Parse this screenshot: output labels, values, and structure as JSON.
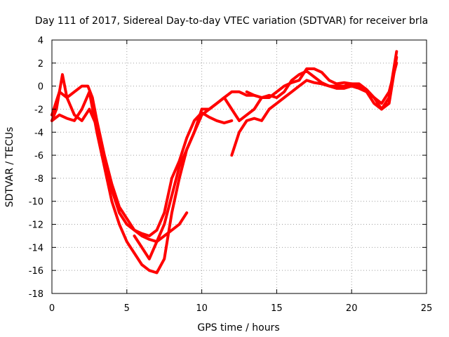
{
  "chart_data": {
    "type": "line",
    "title": "Day 111 of 2017, Sidereal Day-to-day VTEC variation (SDTVAR) for receiver brla",
    "xlabel": "GPS time / hours",
    "ylabel": "SDTVAR / TECUs",
    "xlim": [
      0,
      25
    ],
    "ylim": [
      -18,
      4
    ],
    "xticks": [
      0,
      5,
      10,
      15,
      20,
      25
    ],
    "yticks": [
      -18,
      -16,
      -14,
      -12,
      -10,
      -8,
      -6,
      -4,
      -2,
      0,
      2,
      4
    ],
    "grid": true,
    "color": "#ff0000",
    "series": [
      {
        "x": [
          0,
          0.3,
          0.7,
          1.0,
          1.5,
          2.0,
          2.4,
          2.7,
          3.0,
          3.5,
          4.0,
          4.5,
          5.0,
          5.5,
          6.0,
          6.5,
          7.0,
          7.5,
          8.0,
          8.5,
          9.0,
          9.5,
          10.0,
          10.5,
          11.0,
          11.5,
          12.0
        ],
        "y": [
          -3.0,
          -2.0,
          1.0,
          -1.0,
          -0.5,
          0.0,
          0.0,
          -1.0,
          -3.0,
          -6.0,
          -8.5,
          -10.5,
          -11.5,
          -12.5,
          -12.8,
          -13.0,
          -12.5,
          -11.0,
          -8.0,
          -6.5,
          -4.5,
          -3.0,
          -2.3,
          -2.7,
          -3.0,
          -3.2,
          -3.0
        ]
      },
      {
        "x": [
          0,
          0.5,
          1.0,
          1.5,
          2.0,
          2.5,
          3.0,
          3.5,
          4.0,
          4.5,
          5.0,
          5.5,
          6.0,
          6.5,
          7.0,
          7.5,
          8.0,
          8.5,
          9.0,
          9.5,
          10.0,
          10.5,
          11.0,
          11.5,
          12.0,
          12.5,
          13.0,
          13.5,
          14.0
        ],
        "y": [
          -2.5,
          -0.5,
          -1.0,
          -2.5,
          -3.0,
          -2.0,
          -3.5,
          -6.5,
          -9.0,
          -11.0,
          -12.0,
          -12.5,
          -13.0,
          -13.3,
          -13.5,
          -12.0,
          -9.5,
          -7.0,
          -5.5,
          -4.0,
          -2.0,
          -2.0,
          -1.5,
          -1.0,
          -0.5,
          -0.5,
          -0.8,
          -0.8,
          -1.0
        ]
      },
      {
        "x": [
          0,
          0.5,
          1.0,
          1.5,
          2.0,
          2.5,
          3.0,
          3.5,
          4.0,
          4.5,
          5.0,
          5.5,
          6.0,
          6.5,
          7.0,
          7.5,
          8.0,
          8.5,
          9.0,
          9.5,
          10.0,
          10.5,
          11.0,
          11.5,
          12.0,
          12.5,
          13.0,
          13.5,
          14.0,
          14.5,
          15.0,
          15.5,
          16.0,
          16.5,
          17.0,
          17.5,
          18.0,
          18.5,
          19.0,
          19.5,
          20.0,
          20.5,
          21.0,
          21.5,
          22.0,
          22.5,
          23.0
        ],
        "y": [
          -3.0,
          -2.5,
          -2.8,
          -3.0,
          -2.0,
          -0.5,
          -4.0,
          -7.0,
          -10.0,
          -12.0,
          -13.5,
          -14.5,
          -15.5,
          -16.0,
          -16.2,
          -15.0,
          -11.0,
          -8.0,
          -5.5,
          -4.0,
          -2.5,
          -2.0,
          -1.5,
          -1.0,
          -2.0,
          -3.0,
          -2.5,
          -2.0,
          -1.0,
          -0.8,
          -1.0,
          -0.5,
          0.5,
          1.0,
          1.3,
          0.8,
          0.3,
          0.0,
          -0.2,
          -0.2,
          0.0,
          -0.2,
          -0.5,
          -1.0,
          -2.0,
          -1.0,
          3.0
        ]
      },
      {
        "x": [
          5.5,
          6.0,
          6.5,
          7.0,
          7.5,
          8.0,
          8.5,
          9.0
        ],
        "y": [
          -13.0,
          -14.0,
          -15.0,
          -13.5,
          -13.0,
          -12.5,
          -12.0,
          -11.0
        ]
      },
      {
        "x": [
          12.0,
          12.5,
          13.0,
          13.5,
          14.0,
          14.5,
          15.0,
          15.5,
          16.0,
          16.5,
          17.0,
          17.5,
          18.0,
          18.5,
          19.0,
          19.5,
          20.0,
          20.5,
          21.0,
          21.5,
          22.0,
          22.5,
          23.0
        ],
        "y": [
          -6.0,
          -4.0,
          -3.0,
          -2.8,
          -3.0,
          -2.0,
          -1.5,
          -1.0,
          -0.5,
          0.0,
          0.5,
          0.3,
          0.2,
          0.0,
          0.0,
          0.0,
          0.2,
          0.0,
          -0.5,
          -1.5,
          -2.0,
          -1.5,
          2.5
        ]
      },
      {
        "x": [
          13.0,
          13.5,
          14.0,
          14.5,
          15.0,
          15.5,
          16.0,
          16.5,
          17.0,
          17.5,
          18.0,
          18.5,
          19.0,
          19.5,
          20.0,
          20.5,
          21.0,
          21.5,
          22.0,
          22.5,
          23.0
        ],
        "y": [
          -0.5,
          -0.8,
          -1.0,
          -1.0,
          -0.5,
          0.0,
          0.3,
          0.5,
          1.5,
          1.5,
          1.2,
          0.5,
          0.2,
          0.3,
          0.2,
          0.2,
          -0.3,
          -1.0,
          -1.5,
          -0.5,
          2.0
        ]
      }
    ]
  }
}
